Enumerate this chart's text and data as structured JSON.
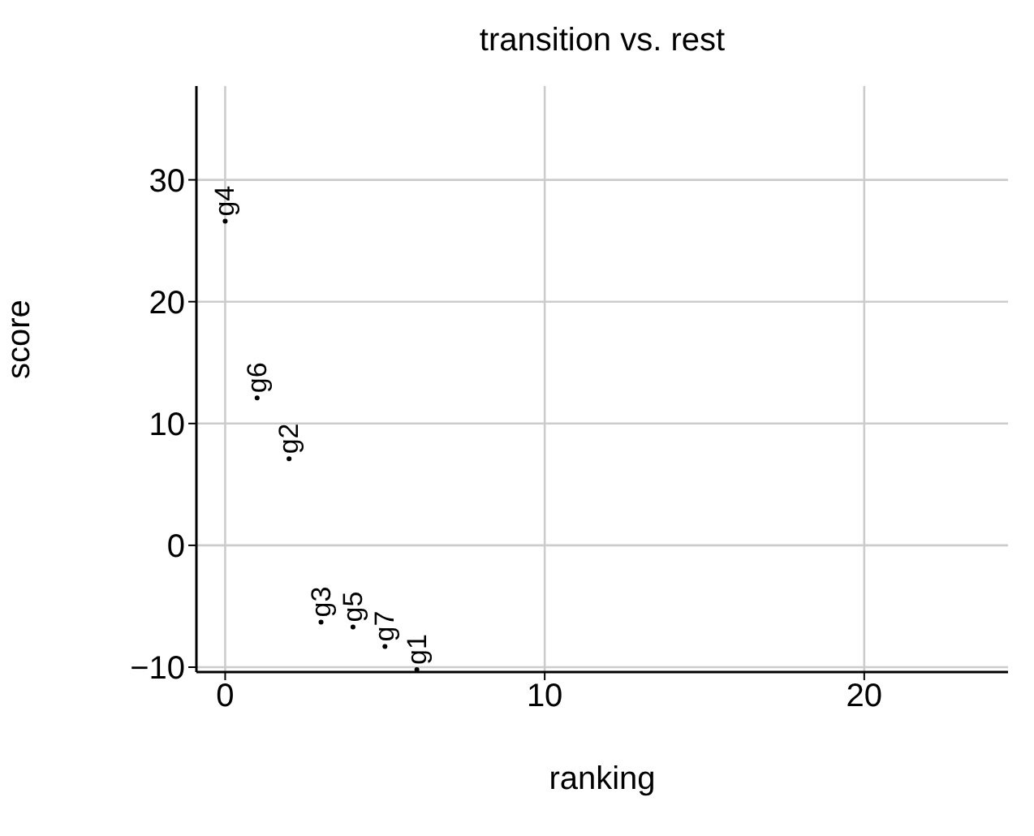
{
  "chart_data": {
    "type": "scatter",
    "title": "transition vs. rest",
    "xlabel": "ranking",
    "ylabel": "score",
    "x": [
      0,
      1,
      2,
      3,
      4,
      5,
      6
    ],
    "series": [
      {
        "color": "#000000",
        "values": [
          26.6,
          12.1,
          7.1,
          -6.3,
          -6.7,
          -8.3,
          -10.2
        ],
        "value_labels": [
          "g4",
          "g6",
          "g2",
          "g3",
          "g5",
          "g7",
          "g1"
        ]
      }
    ],
    "xlim": [
      -0.9,
      24.5
    ],
    "xticks": [
      0,
      10,
      20
    ],
    "ylim": [
      -10.4,
      37.7
    ],
    "yticks": [
      -10,
      0,
      10,
      20,
      30
    ],
    "grid": true,
    "marker": "circle",
    "legend": false
  }
}
